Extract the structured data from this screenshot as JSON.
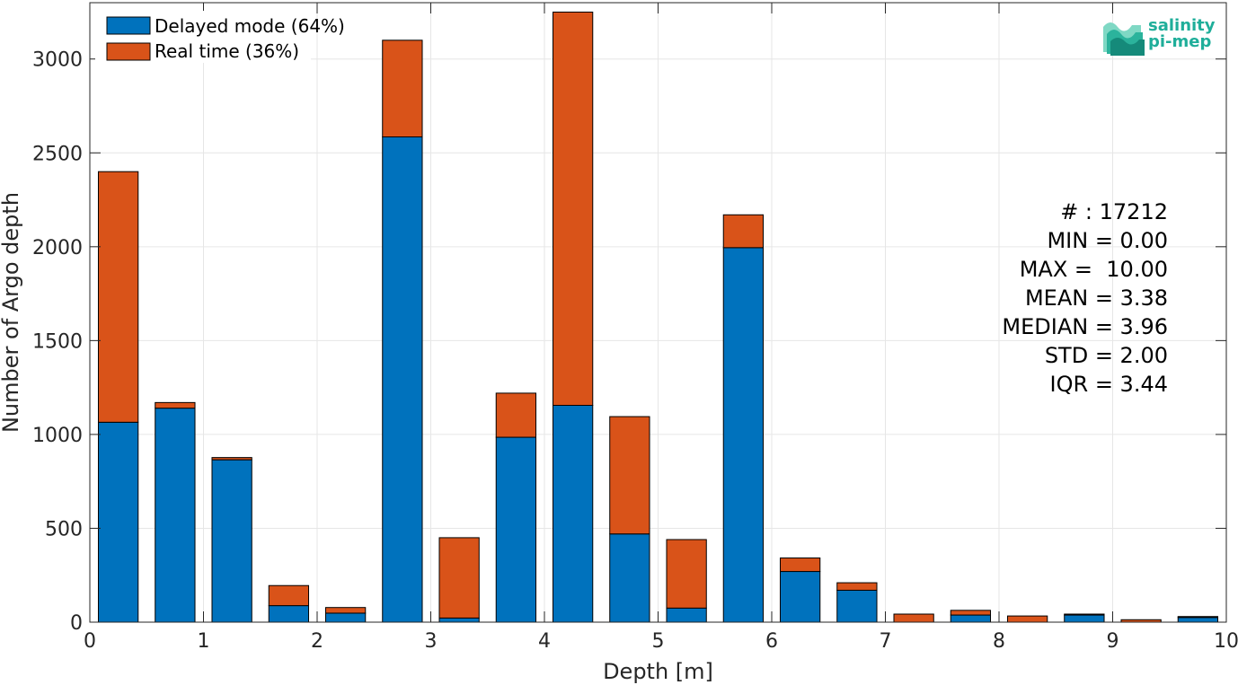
{
  "chart_data": {
    "type": "bar",
    "stacked": true,
    "xlabel": "Depth [m]",
    "ylabel": "Number of Argo depth",
    "xlim": [
      0,
      10
    ],
    "ylim": [
      0,
      3300
    ],
    "xticks": [
      "0",
      "1",
      "2",
      "3",
      "4",
      "5",
      "6",
      "7",
      "8",
      "9",
      "10"
    ],
    "yticks": [
      "0",
      "500",
      "1000",
      "1500",
      "2000",
      "2500",
      "3000"
    ],
    "grid": true,
    "legend_position": "top-left",
    "bin_width": 0.5,
    "bin_centers": [
      0.25,
      0.75,
      1.25,
      1.75,
      2.25,
      2.75,
      3.25,
      3.75,
      4.25,
      4.75,
      5.25,
      5.75,
      6.25,
      6.75,
      7.25,
      7.75,
      8.25,
      8.75,
      9.25,
      9.75
    ],
    "series": [
      {
        "name": "Delayed mode (64%)",
        "color": "#0072bd",
        "values": [
          1065,
          1140,
          865,
          88,
          48,
          2585,
          22,
          985,
          1155,
          470,
          75,
          1995,
          270,
          170,
          0,
          38,
          0,
          38,
          0,
          25
        ]
      },
      {
        "name": "Real time (36%)",
        "color": "#d95319",
        "values": [
          1335,
          30,
          12,
          107,
          30,
          515,
          428,
          235,
          2095,
          625,
          365,
          175,
          72,
          40,
          43,
          25,
          33,
          5,
          13,
          5
        ]
      }
    ],
    "stats": [
      "# : 17212",
      "MIN = 0.00",
      "MAX =  10.00",
      "MEAN = 3.38",
      "MEDIAN = 3.96",
      "STD = 2.00",
      "IQR = 3.44"
    ]
  },
  "logo": {
    "line1": "salinity",
    "line2": "pi-mep"
  }
}
